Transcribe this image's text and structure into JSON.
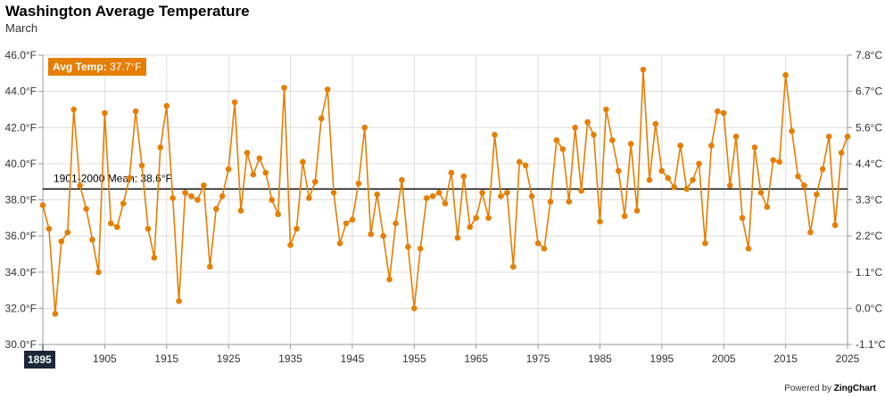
{
  "colors": {
    "series": "#e67e00",
    "mean_line": "#000000",
    "grid": "#dddddd",
    "axis": "#999999"
  },
  "header": {
    "title": "Washington Average Temperature",
    "subtitle": "March"
  },
  "tooltip": {
    "label": "Avg Temp:",
    "value": "37.7°F"
  },
  "crosshair": {
    "label": "1895"
  },
  "footer": {
    "powered_label": "Powered by",
    "brand": "ZingChart"
  },
  "chart_data": {
    "type": "line",
    "title": "Washington Average Temperature",
    "subtitle": "March",
    "xlim": [
      1895,
      2025
    ],
    "ylim": [
      30,
      46
    ],
    "y_ticks": [
      "30.0°F",
      "32.0°F",
      "34.0°F",
      "36.0°F",
      "38.0°F",
      "40.0°F",
      "42.0°F",
      "44.0°F",
      "46.0°F"
    ],
    "y2_ticks": [
      "-1.1°C",
      "0.0°C",
      "1.1°C",
      "2.2°C",
      "3.3°C",
      "4.4°C",
      "5.6°C",
      "6.7°C",
      "7.8°C"
    ],
    "x_ticks": [
      "1895",
      "1905",
      "1915",
      "1925",
      "1935",
      "1945",
      "1955",
      "1965",
      "1975",
      "1985",
      "1995",
      "2005",
      "2015",
      "2025"
    ],
    "grid": true,
    "mean": {
      "label": "1901-2000 Mean: 38.6°F",
      "value": 38.6
    },
    "series": [
      {
        "start_year": 1895,
        "values": [
          37.7,
          36.4,
          31.7,
          35.7,
          36.2,
          43.0,
          38.8,
          37.5,
          35.8,
          34.0,
          42.8,
          36.7,
          36.5,
          37.8,
          39.2,
          42.9,
          39.9,
          36.4,
          34.8,
          40.9,
          43.2,
          38.1,
          32.4,
          38.4,
          38.2,
          38.0,
          38.8,
          34.3,
          37.5,
          38.2,
          39.7,
          43.4,
          37.4,
          40.6,
          39.4,
          40.3,
          39.5,
          38.0,
          37.2,
          44.2,
          35.5,
          36.4,
          40.1,
          38.1,
          39.0,
          42.5,
          44.1,
          38.4,
          35.6,
          36.7,
          36.9,
          38.9,
          42.0,
          36.1,
          38.3,
          36.0,
          33.6,
          36.7,
          39.1,
          35.4,
          32.0,
          35.3,
          38.1,
          38.2,
          38.4,
          37.8,
          39.5,
          35.9,
          39.3,
          36.5,
          37.0,
          38.4,
          37.0,
          41.6,
          38.2,
          38.4,
          34.3,
          40.1,
          39.9,
          38.2,
          35.6,
          35.3,
          37.9,
          41.3,
          40.8,
          37.9,
          42.0,
          38.5,
          42.3,
          41.6,
          36.8,
          43.0,
          41.3,
          39.6,
          37.1,
          41.1,
          37.4,
          45.2,
          39.1,
          42.2,
          39.6,
          39.2,
          38.7,
          41.0,
          38.6,
          39.1,
          40.0,
          35.6,
          41.0,
          42.9,
          42.8,
          38.8,
          41.5,
          37.0,
          35.3,
          40.9,
          38.4,
          37.6,
          40.2,
          40.1,
          44.9,
          41.8,
          39.3,
          38.8,
          36.2,
          38.3,
          39.7,
          41.5,
          36.6,
          40.6,
          41.5
        ]
      }
    ]
  }
}
